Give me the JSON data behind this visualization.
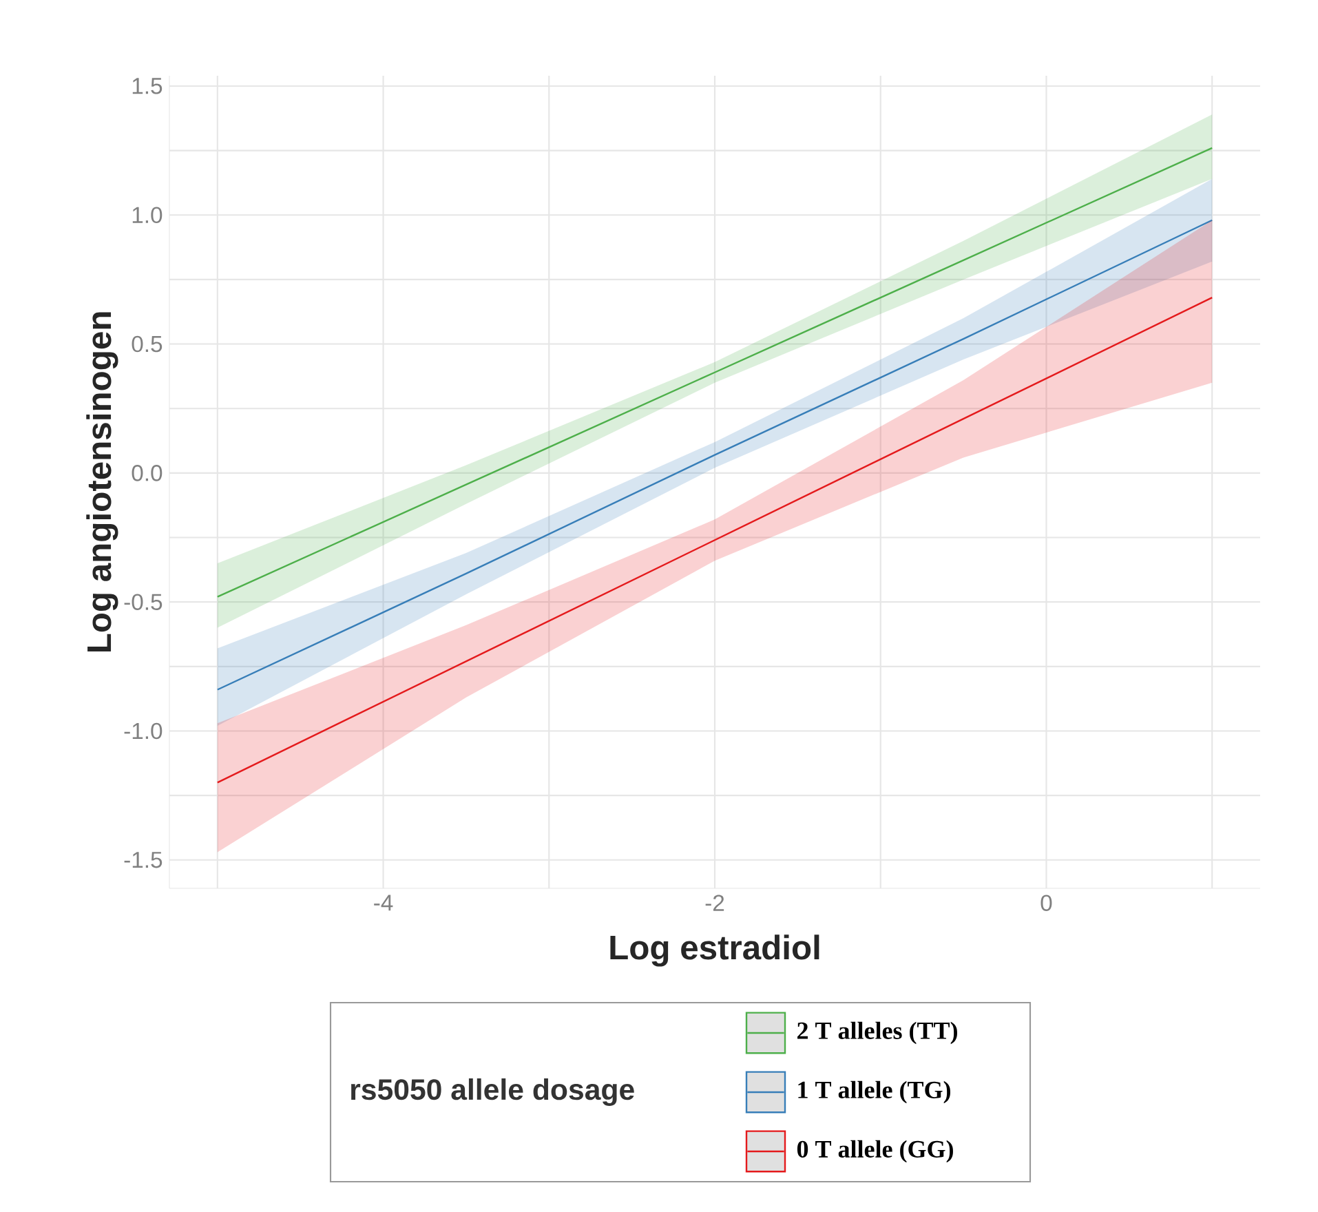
{
  "chart_data": {
    "type": "line",
    "xlabel": "Log estradiol",
    "ylabel": "Log angiotensinogen",
    "legend_title": "rs5050 allele dosage",
    "x": [
      -5,
      -3.5,
      -2,
      -0.5,
      1
    ],
    "series": [
      {
        "name": "2 T alleles (TT)",
        "color": "#4daf4a",
        "values": [
          -0.48,
          -0.045,
          0.39,
          0.825,
          1.26
        ],
        "lower": [
          -0.6,
          -0.12,
          0.35,
          0.75,
          1.14
        ],
        "upper": [
          -0.35,
          0.03,
          0.43,
          0.9,
          1.39
        ]
      },
      {
        "name": "1 T allele (TG)",
        "color": "#377eb8",
        "values": [
          -0.84,
          -0.39,
          0.07,
          0.52,
          0.98
        ],
        "lower": [
          -0.98,
          -0.47,
          0.02,
          0.44,
          0.82
        ],
        "upper": [
          -0.68,
          -0.31,
          0.12,
          0.6,
          1.14
        ]
      },
      {
        "name": "0 T allele (GG)",
        "color": "#e41a1c",
        "values": [
          -1.2,
          -0.73,
          -0.26,
          0.21,
          0.68
        ],
        "lower": [
          -1.47,
          -0.87,
          -0.34,
          0.06,
          0.35
        ],
        "upper": [
          -0.97,
          -0.59,
          -0.18,
          0.36,
          0.98
        ]
      }
    ],
    "xlim": [
      -5.29,
      1.29
    ],
    "ylim": [
      -1.61,
      1.54
    ],
    "xticks": [
      {
        "value": -5,
        "label": null
      },
      -4,
      {
        "value": -3,
        "label": null
      },
      -2,
      {
        "value": -1,
        "label": null
      },
      0,
      {
        "value": 1,
        "label": null
      }
    ],
    "yticks": [
      -1.5,
      {
        "value": -1.25,
        "label": null
      },
      {
        "value": -1,
        "label": "-1.0"
      },
      {
        "value": -0.75,
        "label": null
      },
      -0.5,
      {
        "value": -0.25,
        "label": null
      },
      {
        "value": 0,
        "label": "0.0"
      },
      {
        "value": 0.25,
        "label": null
      },
      0.5,
      {
        "value": 0.75,
        "label": null
      },
      {
        "value": 1,
        "label": "1.0"
      },
      {
        "value": 1.25,
        "label": null
      },
      1.5
    ],
    "grid": true,
    "legend": "bottom"
  }
}
